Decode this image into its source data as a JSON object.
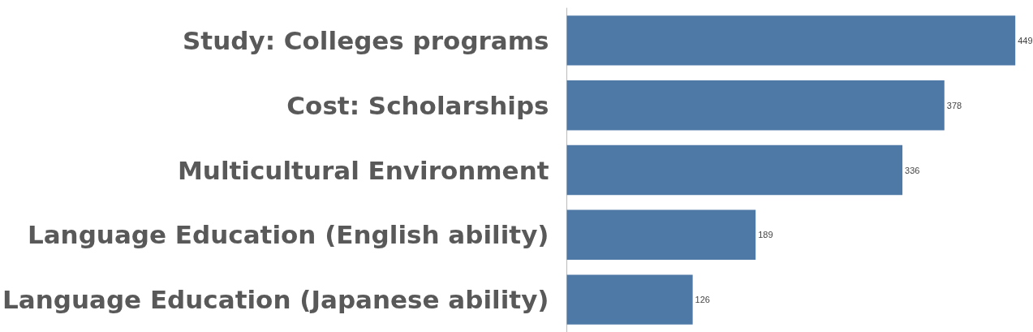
{
  "chart_data": {
    "type": "bar",
    "orientation": "horizontal",
    "categories": [
      "Study: Colleges programs",
      "Cost: Scholarships",
      "Multicultural Environment",
      "Language Education (English ability)",
      "Language Education (Japanese ability)"
    ],
    "values": [
      449,
      378,
      336,
      189,
      126
    ],
    "color": "#4e79a7",
    "data_labels": true
  }
}
